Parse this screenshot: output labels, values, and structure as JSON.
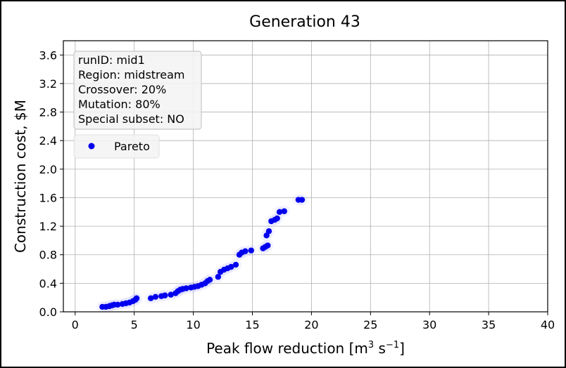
{
  "chart_data": {
    "type": "scatter",
    "title": "Generation 43",
    "xlabel": "Peak flow reduction [m³ s⁻¹]",
    "xlabel_main": "Peak flow reduction [m",
    "xlabel_sup1": "3",
    "xlabel_mid": " s",
    "xlabel_sup2": "−1",
    "xlabel_end": "]",
    "ylabel": "Construction cost, $M",
    "xlim": [
      -1,
      40
    ],
    "ylim": [
      0,
      3.8
    ],
    "xticks": [
      0,
      5,
      10,
      15,
      20,
      25,
      30,
      35,
      40
    ],
    "yticks": [
      0.0,
      0.4,
      0.8,
      1.2,
      1.6,
      2.0,
      2.4,
      2.8,
      3.2,
      3.6
    ],
    "ytick_labels": [
      "0.0",
      "0.4",
      "0.8",
      "1.2",
      "1.6",
      "2.0",
      "2.4",
      "2.8",
      "3.2",
      "3.6"
    ],
    "grid": true,
    "legend_position": "upper-left",
    "info_lines": [
      "runID: mid1",
      "Region: midstream",
      "Crossover: 20%",
      "Mutation: 80%",
      "Special subset: NO"
    ],
    "series": [
      {
        "name": "Pareto",
        "color": "#0000ee",
        "points": [
          [
            2.3,
            0.07
          ],
          [
            2.6,
            0.07
          ],
          [
            2.9,
            0.08
          ],
          [
            3.1,
            0.09
          ],
          [
            3.3,
            0.1
          ],
          [
            3.6,
            0.1
          ],
          [
            4.0,
            0.11
          ],
          [
            4.3,
            0.12
          ],
          [
            4.6,
            0.13
          ],
          [
            4.9,
            0.15
          ],
          [
            5.1,
            0.17
          ],
          [
            5.2,
            0.19
          ],
          [
            6.4,
            0.19
          ],
          [
            6.8,
            0.21
          ],
          [
            7.3,
            0.22
          ],
          [
            7.6,
            0.23
          ],
          [
            8.1,
            0.24
          ],
          [
            8.5,
            0.26
          ],
          [
            8.7,
            0.29
          ],
          [
            8.9,
            0.31
          ],
          [
            9.1,
            0.32
          ],
          [
            9.4,
            0.33
          ],
          [
            9.8,
            0.34
          ],
          [
            10.1,
            0.35
          ],
          [
            10.4,
            0.36
          ],
          [
            10.7,
            0.38
          ],
          [
            11.0,
            0.4
          ],
          [
            11.2,
            0.43
          ],
          [
            11.4,
            0.45
          ],
          [
            12.1,
            0.49
          ],
          [
            12.3,
            0.56
          ],
          [
            12.6,
            0.59
          ],
          [
            12.9,
            0.61
          ],
          [
            13.2,
            0.63
          ],
          [
            13.6,
            0.66
          ],
          [
            13.9,
            0.8
          ],
          [
            14.1,
            0.83
          ],
          [
            14.4,
            0.85
          ],
          [
            14.9,
            0.86
          ],
          [
            15.9,
            0.89
          ],
          [
            16.1,
            0.91
          ],
          [
            16.3,
            0.93
          ],
          [
            16.2,
            1.07
          ],
          [
            16.4,
            1.13
          ],
          [
            16.6,
            1.27
          ],
          [
            16.9,
            1.29
          ],
          [
            17.1,
            1.31
          ],
          [
            17.3,
            1.4
          ],
          [
            17.7,
            1.41
          ],
          [
            18.9,
            1.57
          ],
          [
            19.2,
            1.57
          ]
        ]
      }
    ]
  }
}
